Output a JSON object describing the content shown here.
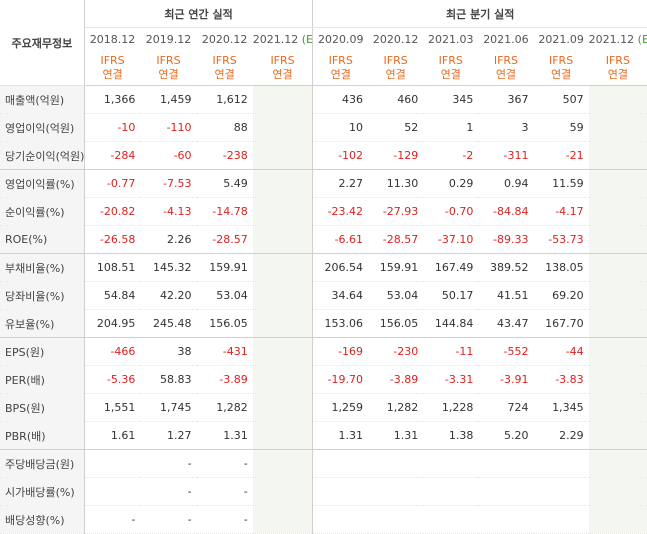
{
  "header": {
    "label_col": "주요재무정보",
    "annual_group": "최근 연간 실적",
    "quarter_group": "최근 분기 실적",
    "annual_periods": [
      "2018.12",
      "2019.12",
      "2020.12",
      "2021.12"
    ],
    "annual_est_mark": "(E)",
    "quarter_periods": [
      "2020.09",
      "2020.12",
      "2021.03",
      "2021.06",
      "2021.09",
      "2021.12"
    ],
    "quarter_est_mark": "(E)",
    "ifrs_top": "IFRS",
    "ifrs_bottom": "연결"
  },
  "rows": [
    {
      "label": "매출액(억원)",
      "annual": [
        "1,366",
        "1,459",
        "1,612",
        ""
      ],
      "quarter": [
        "436",
        "460",
        "345",
        "367",
        "507",
        ""
      ]
    },
    {
      "label": "영업이익(억원)",
      "annual": [
        "-10",
        "-110",
        "88",
        ""
      ],
      "quarter": [
        "10",
        "52",
        "1",
        "3",
        "59",
        ""
      ]
    },
    {
      "label": "당기순이익(억원)",
      "annual": [
        "-284",
        "-60",
        "-238",
        ""
      ],
      "quarter": [
        "-102",
        "-129",
        "-2",
        "-311",
        "-21",
        ""
      ]
    },
    {
      "label": "영업이익률(%)",
      "annual": [
        "-0.77",
        "-7.53",
        "5.49",
        ""
      ],
      "quarter": [
        "2.27",
        "11.30",
        "0.29",
        "0.94",
        "11.59",
        ""
      ]
    },
    {
      "label": "순이익률(%)",
      "annual": [
        "-20.82",
        "-4.13",
        "-14.78",
        ""
      ],
      "quarter": [
        "-23.42",
        "-27.93",
        "-0.70",
        "-84.84",
        "-4.17",
        ""
      ]
    },
    {
      "label": "ROE(%)",
      "annual": [
        "-26.58",
        "2.26",
        "-28.57",
        ""
      ],
      "quarter": [
        "-6.61",
        "-28.57",
        "-37.10",
        "-89.33",
        "-53.73",
        ""
      ]
    },
    {
      "label": "부채비율(%)",
      "annual": [
        "108.51",
        "145.32",
        "159.91",
        ""
      ],
      "quarter": [
        "206.54",
        "159.91",
        "167.49",
        "389.52",
        "138.05",
        ""
      ]
    },
    {
      "label": "당좌비율(%)",
      "annual": [
        "54.84",
        "42.20",
        "53.04",
        ""
      ],
      "quarter": [
        "34.64",
        "53.04",
        "50.17",
        "41.51",
        "69.20",
        ""
      ]
    },
    {
      "label": "유보율(%)",
      "annual": [
        "204.95",
        "245.48",
        "156.05",
        ""
      ],
      "quarter": [
        "153.06",
        "156.05",
        "144.84",
        "43.47",
        "167.70",
        ""
      ]
    },
    {
      "label": "EPS(원)",
      "annual": [
        "-466",
        "38",
        "-431",
        ""
      ],
      "quarter": [
        "-169",
        "-230",
        "-11",
        "-552",
        "-44",
        ""
      ]
    },
    {
      "label": "PER(배)",
      "annual": [
        "-5.36",
        "58.83",
        "-3.89",
        ""
      ],
      "quarter": [
        "-19.70",
        "-3.89",
        "-3.31",
        "-3.91",
        "-3.83",
        ""
      ]
    },
    {
      "label": "BPS(원)",
      "annual": [
        "1,551",
        "1,745",
        "1,282",
        ""
      ],
      "quarter": [
        "1,259",
        "1,282",
        "1,228",
        "724",
        "1,345",
        ""
      ]
    },
    {
      "label": "PBR(배)",
      "annual": [
        "1.61",
        "1.27",
        "1.31",
        ""
      ],
      "quarter": [
        "1.31",
        "1.31",
        "1.38",
        "5.20",
        "2.29",
        ""
      ]
    },
    {
      "label": "주당배당금(원)",
      "annual": [
        "",
        "-",
        "-",
        ""
      ],
      "quarter": [
        "",
        "",
        "",
        "",
        "",
        ""
      ]
    },
    {
      "label": "시가배당률(%)",
      "annual": [
        "",
        "-",
        "-",
        ""
      ],
      "quarter": [
        "",
        "",
        "",
        "",
        "",
        ""
      ]
    },
    {
      "label": "배당성향(%)",
      "annual": [
        "-",
        "-",
        "-",
        ""
      ],
      "quarter": [
        "",
        "",
        "",
        "",
        "",
        ""
      ]
    }
  ],
  "colors": {
    "negative": "#e02020",
    "ifrs": "#e86a1f",
    "estimate_mark": "#3d9d2a",
    "estimate_bg": "#f4f7ef",
    "label_bg": "#f5f5f5"
  }
}
